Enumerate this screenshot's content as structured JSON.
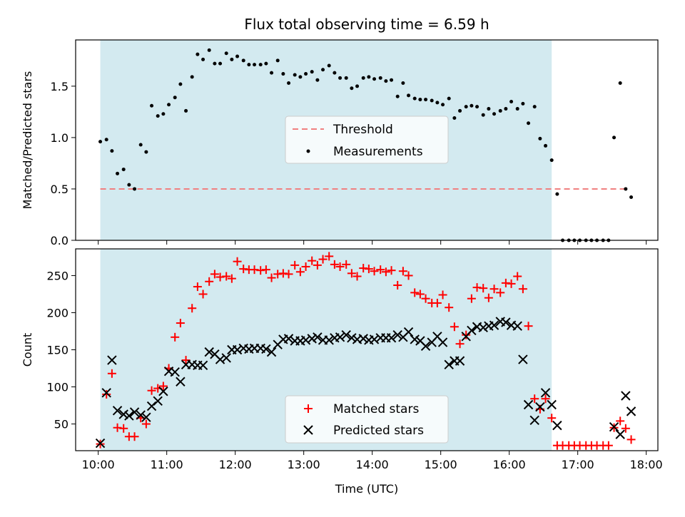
{
  "title": "Flux total observing time = 6.59 h",
  "colors": {
    "shade": "#d3eaf0",
    "threshold": "#f08080",
    "measurement": "#000000",
    "matched": "#ff0000",
    "predicted": "#000000"
  },
  "xaxis": {
    "label": "Time (UTC)",
    "range": [
      9.67,
      18.17
    ],
    "ticks": [
      10,
      11,
      12,
      13,
      14,
      15,
      16,
      17,
      18
    ],
    "tick_labels": [
      "10:00",
      "11:00",
      "12:00",
      "13:00",
      "14:00",
      "15:00",
      "16:00",
      "17:00",
      "18:00"
    ]
  },
  "chart_data": [
    {
      "type": "scatter",
      "ylabel": "Matched/Predicted stars",
      "ylim": [
        0.0,
        1.95
      ],
      "yticks": [
        0.0,
        0.5,
        1.0,
        1.5
      ],
      "ytick_labels": [
        "0.0",
        "0.5",
        "1.0",
        "1.5"
      ],
      "observing_window": [
        10.03,
        16.62
      ],
      "legend": {
        "placement": "center",
        "entries": [
          "Threshold",
          "Measurements"
        ]
      },
      "threshold": {
        "name": "Threshold",
        "y": 0.5,
        "x_range": [
          10.03,
          17.75
        ]
      },
      "series": [
        {
          "name": "Measurements",
          "x": [
            10.03,
            10.12,
            10.2,
            10.28,
            10.37,
            10.45,
            10.53,
            10.62,
            10.7,
            10.78,
            10.87,
            10.95,
            11.03,
            11.12,
            11.2,
            11.28,
            11.37,
            11.45,
            11.53,
            11.62,
            11.7,
            11.78,
            11.87,
            11.95,
            12.03,
            12.12,
            12.2,
            12.28,
            12.37,
            12.45,
            12.53,
            12.62,
            12.7,
            12.78,
            12.87,
            12.95,
            13.03,
            13.12,
            13.2,
            13.28,
            13.37,
            13.45,
            13.53,
            13.62,
            13.7,
            13.78,
            13.87,
            13.95,
            14.03,
            14.12,
            14.2,
            14.28,
            14.37,
            14.45,
            14.53,
            14.62,
            14.7,
            14.78,
            14.87,
            14.95,
            15.03,
            15.12,
            15.2,
            15.28,
            15.37,
            15.45,
            15.53,
            15.62,
            15.7,
            15.78,
            15.87,
            15.95,
            16.03,
            16.12,
            16.2,
            16.28,
            16.37,
            16.45,
            16.53,
            16.62,
            16.7,
            16.78,
            16.87,
            16.95,
            17.03,
            17.12,
            17.2,
            17.28,
            17.37,
            17.45,
            17.53,
            17.62,
            17.7,
            17.78
          ],
          "y": [
            0.96,
            0.98,
            0.87,
            0.65,
            0.69,
            0.54,
            0.5,
            0.93,
            0.86,
            1.31,
            1.21,
            1.23,
            1.32,
            1.39,
            1.52,
            1.26,
            1.59,
            1.81,
            1.76,
            1.85,
            1.72,
            1.72,
            1.82,
            1.76,
            1.79,
            1.75,
            1.71,
            1.71,
            1.71,
            1.72,
            1.63,
            1.75,
            1.62,
            1.53,
            1.61,
            1.59,
            1.62,
            1.64,
            1.56,
            1.66,
            1.7,
            1.63,
            1.58,
            1.58,
            1.48,
            1.5,
            1.58,
            1.59,
            1.57,
            1.58,
            1.55,
            1.56,
            1.4,
            1.53,
            1.41,
            1.38,
            1.37,
            1.37,
            1.36,
            1.34,
            1.32,
            1.38,
            1.19,
            1.26,
            1.3,
            1.31,
            1.3,
            1.22,
            1.28,
            1.23,
            1.26,
            1.28,
            1.35,
            1.28,
            1.33,
            1.14,
            1.3,
            0.99,
            0.92,
            0.78,
            0.45,
            0.0,
            0.0,
            0.0,
            0.0,
            0.0,
            0.0,
            0.0,
            0.0,
            0.0,
            1.0,
            1.53,
            0.5,
            0.42
          ]
        }
      ]
    },
    {
      "type": "scatter",
      "ylabel": "Count",
      "ylim": [
        14,
        286
      ],
      "yticks": [
        50,
        100,
        150,
        200,
        250
      ],
      "ytick_labels": [
        "50",
        "100",
        "150",
        "200",
        "250"
      ],
      "observing_window": [
        10.03,
        16.62
      ],
      "legend": {
        "placement": "lower center",
        "entries": [
          "Matched stars",
          "Predicted stars"
        ]
      },
      "series": [
        {
          "name": "Matched stars",
          "marker": "+",
          "x": [
            10.03,
            10.12,
            10.2,
            10.28,
            10.37,
            10.45,
            10.53,
            10.62,
            10.7,
            10.78,
            10.87,
            10.95,
            11.03,
            11.12,
            11.2,
            11.28,
            11.37,
            11.45,
            11.53,
            11.62,
            11.7,
            11.78,
            11.87,
            11.95,
            12.03,
            12.12,
            12.2,
            12.28,
            12.37,
            12.45,
            12.53,
            12.62,
            12.7,
            12.78,
            12.87,
            12.95,
            13.03,
            13.12,
            13.2,
            13.28,
            13.37,
            13.45,
            13.53,
            13.62,
            13.7,
            13.78,
            13.87,
            13.95,
            14.03,
            14.12,
            14.2,
            14.28,
            14.37,
            14.45,
            14.53,
            14.62,
            14.7,
            14.78,
            14.87,
            14.95,
            15.03,
            15.12,
            15.2,
            15.28,
            15.37,
            15.45,
            15.53,
            15.62,
            15.7,
            15.78,
            15.87,
            15.95,
            16.03,
            16.12,
            16.2,
            16.28,
            16.37,
            16.45,
            16.53,
            16.62,
            16.7,
            16.78,
            16.87,
            16.95,
            17.03,
            17.12,
            17.2,
            17.28,
            17.37,
            17.45,
            17.53,
            17.62,
            17.7,
            17.78
          ],
          "y": [
            23,
            90,
            118,
            45,
            44,
            33,
            33,
            58,
            50,
            95,
            98,
            101,
            125,
            167,
            186,
            136,
            206,
            235,
            225,
            242,
            252,
            248,
            249,
            246,
            269,
            259,
            258,
            258,
            257,
            258,
            247,
            252,
            253,
            252,
            264,
            255,
            262,
            270,
            264,
            272,
            276,
            265,
            262,
            265,
            253,
            249,
            260,
            259,
            256,
            258,
            255,
            257,
            237,
            256,
            250,
            227,
            225,
            219,
            213,
            213,
            224,
            207,
            181,
            158,
            170,
            219,
            234,
            233,
            220,
            232,
            227,
            240,
            239,
            249,
            232,
            182,
            84,
            70,
            84,
            58,
            21,
            21,
            21,
            21,
            21,
            21,
            21,
            21,
            21,
            21,
            45,
            54,
            44,
            29
          ]
        },
        {
          "name": "Predicted stars",
          "marker": "x",
          "x": [
            10.03,
            10.12,
            10.2,
            10.28,
            10.37,
            10.45,
            10.53,
            10.62,
            10.7,
            10.78,
            10.87,
            10.95,
            11.03,
            11.12,
            11.2,
            11.28,
            11.37,
            11.45,
            11.53,
            11.62,
            11.7,
            11.78,
            11.87,
            11.95,
            12.03,
            12.12,
            12.2,
            12.28,
            12.37,
            12.45,
            12.53,
            12.62,
            12.7,
            12.78,
            12.87,
            12.95,
            13.03,
            13.12,
            13.2,
            13.28,
            13.37,
            13.45,
            13.53,
            13.62,
            13.7,
            13.78,
            13.87,
            13.95,
            14.03,
            14.12,
            14.2,
            14.28,
            14.37,
            14.45,
            14.53,
            14.62,
            14.7,
            14.78,
            14.87,
            14.95,
            15.03,
            15.12,
            15.2,
            15.28,
            15.37,
            15.45,
            15.53,
            15.62,
            15.7,
            15.78,
            15.87,
            15.95,
            16.03,
            16.12,
            16.2,
            16.28,
            16.37,
            16.45,
            16.53,
            16.62,
            16.7,
            17.53,
            17.62,
            17.7,
            17.78
          ],
          "y": [
            24,
            92,
            136,
            68,
            63,
            61,
            66,
            62,
            59,
            74,
            81,
            94,
            121,
            120,
            107,
            130,
            130,
            129,
            129,
            147,
            144,
            137,
            139,
            150,
            150,
            152,
            151,
            152,
            152,
            151,
            147,
            157,
            164,
            165,
            162,
            162,
            163,
            165,
            167,
            163,
            163,
            166,
            167,
            170,
            166,
            164,
            165,
            163,
            164,
            166,
            166,
            166,
            170,
            167,
            174,
            164,
            162,
            155,
            160,
            168,
            160,
            130,
            135,
            135,
            168,
            176,
            181,
            180,
            182,
            183,
            188,
            187,
            183,
            182,
            137,
            76,
            55,
            73,
            92,
            76,
            48,
            46,
            36,
            88,
            67
          ]
        }
      ]
    }
  ]
}
